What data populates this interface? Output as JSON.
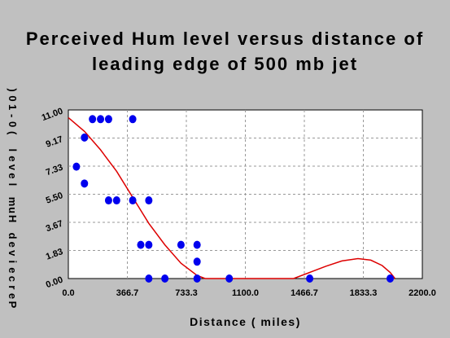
{
  "chart_data": {
    "type": "scatter",
    "title_lines": [
      "Perceived Hum level versus distance of",
      "leading edge of 500 mb jet"
    ],
    "xlabel": "Distance ( miles)",
    "ylabel": "Perceived Hum level (0-10)",
    "xlim": [
      0,
      2200
    ],
    "ylim": [
      0,
      11
    ],
    "x_ticks": [
      "0.0",
      "366.7",
      "733.3",
      "1100.0",
      "1466.7",
      "1833.3",
      "2200.0"
    ],
    "y_ticks": [
      "0.00",
      "1.83",
      "3.67",
      "5.50",
      "7.33",
      "9.17",
      "11.00"
    ],
    "grid": true,
    "series": [
      {
        "kind": "points",
        "color": "#0000ee",
        "points": [
          [
            50,
            7.3
          ],
          [
            100,
            9.2
          ],
          [
            100,
            6.2
          ],
          [
            150,
            10.4
          ],
          [
            200,
            10.4
          ],
          [
            250,
            10.4
          ],
          [
            400,
            10.4
          ],
          [
            250,
            5.1
          ],
          [
            300,
            5.1
          ],
          [
            400,
            5.1
          ],
          [
            500,
            5.1
          ],
          [
            450,
            2.2
          ],
          [
            500,
            2.2
          ],
          [
            700,
            2.2
          ],
          [
            800,
            2.2
          ],
          [
            800,
            1.1
          ],
          [
            500,
            0
          ],
          [
            600,
            0
          ],
          [
            800,
            0
          ],
          [
            1000,
            0
          ],
          [
            1500,
            0
          ],
          [
            2000,
            0
          ]
        ]
      },
      {
        "kind": "fit-curve",
        "color": "#dd0000",
        "points": [
          [
            0,
            10.5
          ],
          [
            100,
            9.6
          ],
          [
            200,
            8.4
          ],
          [
            300,
            7.0
          ],
          [
            400,
            5.3
          ],
          [
            500,
            3.6
          ],
          [
            600,
            2.2
          ],
          [
            700,
            1.0
          ],
          [
            800,
            0.2
          ],
          [
            850,
            0
          ],
          [
            1400,
            0
          ],
          [
            1500,
            0.4
          ],
          [
            1600,
            0.8
          ],
          [
            1700,
            1.15
          ],
          [
            1800,
            1.3
          ],
          [
            1880,
            1.2
          ],
          [
            1950,
            0.85
          ],
          [
            2000,
            0.4
          ],
          [
            2030,
            0
          ]
        ]
      }
    ]
  }
}
